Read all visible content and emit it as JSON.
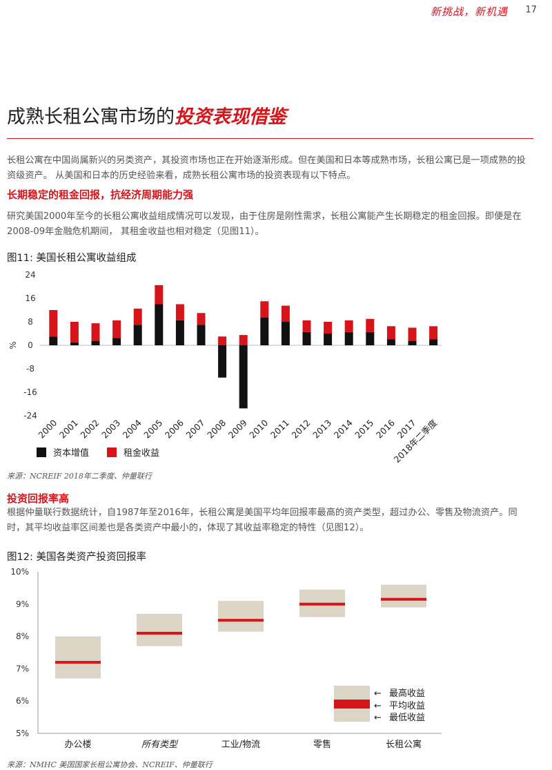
{
  "header": {
    "slogan": "新挑战，新机遇",
    "page_number": "17"
  },
  "title": {
    "main": "成熟长租公寓市场的",
    "accent": "投资表现借鉴"
  },
  "intro": "长租公寓在中国尚属新兴的另类资产，其投资市场也正在开始逐渐形成。但在美国和日本等成熟市场，长租公寓已是一项成熟的投资级资产。 从美国和日本的历史经验来看，成熟长租公寓市场的投资表现有以下特点。",
  "section1": {
    "heading": "长期稳定的租金回报，抗经济周期能力强",
    "body": "研究美国2000年至今的长租公寓收益组成情况可以发现，由于住房是刚性需求，长租公寓能产生长期稳定的租金回报。即便是在2008-09年金融危机期间， 其租金收益也相对稳定（见图11）。"
  },
  "figure11": {
    "title": "图11: 美国长租公寓收益组成",
    "source": "来源：NCREIF 2018年二季度、仲量联行"
  },
  "section2": {
    "heading": "投资回报率高",
    "body": "根据仲量联行数据统计，自1987年至2016年，长租公寓是美国平均年回报率最高的资产类型，超过办公、零售及物流资产。同时，其平均收益率区间差也是各类资产中最小的，体现了其收益率稳定的特性（见图12）。"
  },
  "figure12": {
    "title": "图12: 美国各类资产投资回报率",
    "source": "来源：NMHC 美国国家长租公寓协会、NCREIF、仲量联行"
  },
  "colors": {
    "accent": "#d7141a",
    "capital": "#111111",
    "rent": "#d7141a",
    "range_box": "#dcd5c5"
  },
  "chart_data": [
    {
      "type": "bar",
      "stacked": true,
      "categories": [
        "2000",
        "2001",
        "2002",
        "2003",
        "2004",
        "2005",
        "2006",
        "2007",
        "2008",
        "2009",
        "2010",
        "2011",
        "2012",
        "2013",
        "2014",
        "2015",
        "2016",
        "2017",
        "2018年二季度"
      ],
      "series": [
        {
          "name": "资本增值",
          "values": [
            3,
            1,
            1.5,
            2.5,
            7,
            14,
            8.5,
            7,
            -11,
            -21.5,
            9.5,
            8,
            4.5,
            4,
            4.5,
            4.5,
            2,
            1.5,
            2
          ]
        },
        {
          "name": "租金收益",
          "values": [
            9,
            7,
            6,
            6,
            5.5,
            6.5,
            5.5,
            4,
            3,
            3.5,
            5.5,
            5.5,
            4,
            4,
            4,
            4.5,
            4.5,
            4.5,
            4.5
          ]
        }
      ],
      "ylabel": "%",
      "ylim": [
        -24,
        24
      ],
      "yticks": [
        "24",
        "16",
        "8",
        "0",
        "-8",
        "-16",
        "-24"
      ],
      "legend": "bottom-left"
    },
    {
      "type": "range",
      "categories": [
        "办公楼",
        "所有类型",
        "工业/物流",
        "零售",
        "长租公寓"
      ],
      "low": [
        6.7,
        7.7,
        8.15,
        8.6,
        8.9
      ],
      "high": [
        8.0,
        8.7,
        9.1,
        9.45,
        9.6
      ],
      "mean": [
        7.2,
        8.1,
        8.5,
        9.0,
        9.15
      ],
      "ylim": [
        5,
        10
      ],
      "yticks": [
        "10%",
        "9%",
        "8%",
        "7%",
        "6%",
        "5%"
      ],
      "legend": {
        "high": "最高收益",
        "mean": "平均收益",
        "low": "最低收益"
      },
      "legend_position": "bottom-right"
    }
  ]
}
